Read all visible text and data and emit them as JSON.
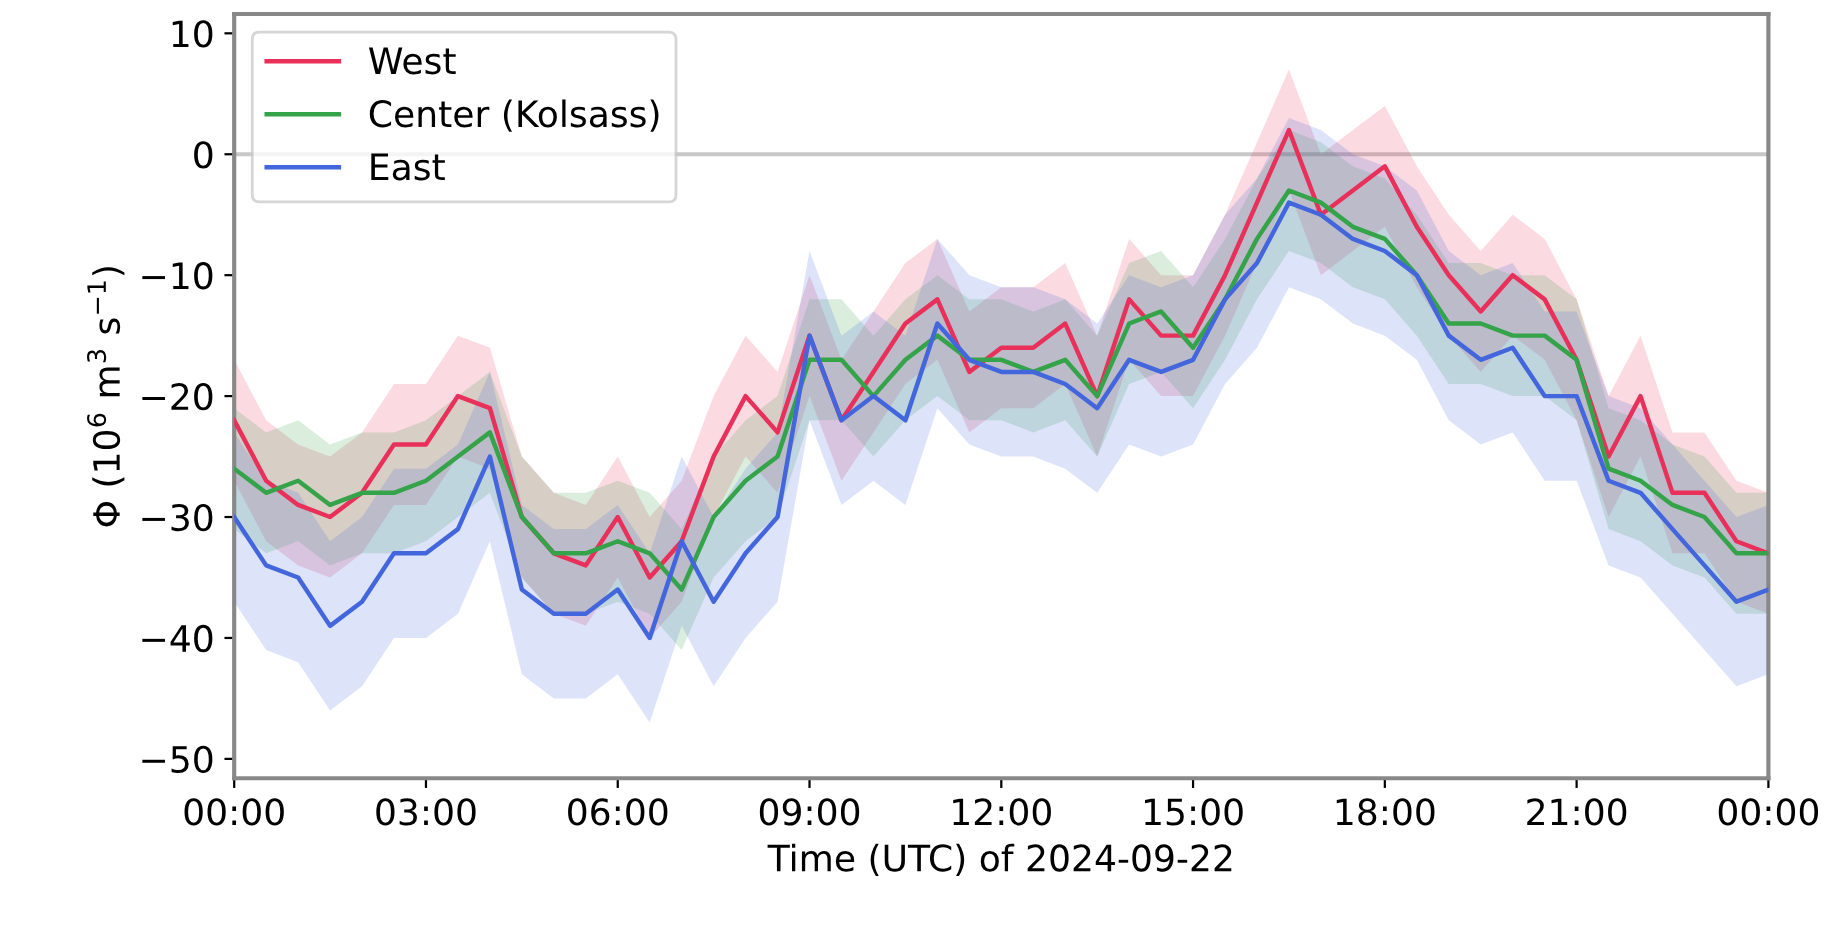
{
  "chart_data": {
    "type": "line",
    "xlabel": "Time (UTC) of 2024-09-22",
    "ylabel": "Φ (10$^{6}$ m$^{3}$ s$^{−1}$)",
    "x": [
      0,
      0.5,
      1,
      1.5,
      2,
      2.5,
      3,
      3.5,
      4,
      4.5,
      5,
      5.5,
      6,
      6.5,
      7,
      7.5,
      8,
      8.5,
      9,
      9.5,
      10,
      10.5,
      11,
      11.5,
      12,
      12.5,
      13,
      13.5,
      14,
      14.5,
      15,
      15.5,
      16,
      16.5,
      17,
      17.5,
      18,
      18.5,
      19,
      19.5,
      20,
      20.5,
      21,
      21.5,
      22,
      22.5,
      23,
      23.5,
      24
    ],
    "xlim": [
      0,
      24
    ],
    "xticks": [
      {
        "value": 0,
        "label": "00:00"
      },
      {
        "value": 3,
        "label": "03:00"
      },
      {
        "value": 6,
        "label": "06:00"
      },
      {
        "value": 9,
        "label": "09:00"
      },
      {
        "value": 12,
        "label": "12:00"
      },
      {
        "value": 15,
        "label": "15:00"
      },
      {
        "value": 18,
        "label": "18:00"
      },
      {
        "value": 21,
        "label": "21:00"
      },
      {
        "value": 24,
        "label": "00:00"
      }
    ],
    "ylim": [
      -51.6,
      11.6
    ],
    "yticks": [
      -50,
      -40,
      -30,
      -20,
      -10,
      0,
      10
    ],
    "grid": false,
    "legend": "top left",
    "line_style": "solid",
    "ref_lines": [
      {
        "axis": "y",
        "value": 0,
        "color": "#c8c8c8"
      }
    ],
    "series": [
      {
        "name": "West",
        "color": "#e8305a",
        "values": [
          -22,
          -27,
          -29,
          -30,
          -28,
          -24,
          -24,
          -20,
          -21,
          -30,
          -33,
          -34,
          -30,
          -35,
          -32,
          -25,
          -20,
          -23,
          -15,
          -22,
          -18,
          -14,
          -12,
          -18,
          -16,
          -16,
          -14,
          -20,
          -12,
          -15,
          -15,
          -10,
          -4,
          2,
          -5,
          -3,
          -1,
          -6,
          -10,
          -13,
          -10,
          -12,
          -17,
          -25,
          -20,
          -28,
          -28,
          -32,
          -33
        ],
        "upper": [
          -17,
          -22,
          -24,
          -25,
          -23,
          -19,
          -19,
          -15,
          -16,
          -25,
          -28,
          -29,
          -25,
          -30,
          -27,
          -20,
          -15,
          -18,
          -10,
          -17,
          -13,
          -9,
          -7,
          -13,
          -11,
          -11,
          -9,
          -15,
          -7,
          -10,
          -10,
          -5,
          1,
          7,
          0,
          2,
          4,
          -1,
          -5,
          -8,
          -5,
          -7,
          -12,
          -20,
          -15,
          -23,
          -23,
          -27,
          -28
        ],
        "lower": [
          -27,
          -32,
          -34,
          -35,
          -33,
          -29,
          -29,
          -25,
          -26,
          -35,
          -38,
          -39,
          -35,
          -40,
          -37,
          -30,
          -25,
          -28,
          -20,
          -27,
          -23,
          -19,
          -17,
          -23,
          -21,
          -21,
          -19,
          -25,
          -17,
          -20,
          -20,
          -15,
          -9,
          -3,
          -10,
          -8,
          -6,
          -11,
          -15,
          -18,
          -15,
          -17,
          -22,
          -30,
          -25,
          -33,
          -33,
          -37,
          -38
        ]
      },
      {
        "name": "Center (Kolsass)",
        "color": "#35a34a",
        "values": [
          -26,
          -28,
          -27,
          -29,
          -28,
          -28,
          -27,
          -25,
          -23,
          -30,
          -33,
          -33,
          -32,
          -33,
          -36,
          -30,
          -27,
          -25,
          -17,
          -17,
          -20,
          -17,
          -15,
          -17,
          -17,
          -18,
          -17,
          -20,
          -14,
          -13,
          -16,
          -12,
          -7,
          -3,
          -4,
          -6,
          -7,
          -10,
          -14,
          -14,
          -15,
          -15,
          -17,
          -26,
          -27,
          -29,
          -30,
          -33,
          -33
        ],
        "upper": [
          -21,
          -23,
          -22,
          -24,
          -23,
          -23,
          -22,
          -20,
          -18,
          -25,
          -28,
          -28,
          -27,
          -28,
          -31,
          -25,
          -22,
          -20,
          -12,
          -12,
          -15,
          -12,
          -10,
          -12,
          -12,
          -13,
          -12,
          -15,
          -9,
          -8,
          -11,
          -7,
          -2,
          2,
          1,
          -1,
          -2,
          -5,
          -9,
          -9,
          -10,
          -10,
          -12,
          -21,
          -22,
          -24,
          -25,
          -28,
          -28
        ],
        "lower": [
          -31,
          -33,
          -32,
          -34,
          -33,
          -33,
          -32,
          -30,
          -28,
          -35,
          -38,
          -38,
          -37,
          -38,
          -41,
          -35,
          -32,
          -30,
          -22,
          -22,
          -25,
          -22,
          -20,
          -22,
          -22,
          -23,
          -22,
          -25,
          -19,
          -18,
          -21,
          -17,
          -12,
          -8,
          -9,
          -11,
          -12,
          -15,
          -19,
          -19,
          -20,
          -20,
          -22,
          -31,
          -32,
          -34,
          -35,
          -38,
          -38
        ]
      },
      {
        "name": "East",
        "color": "#4466dd",
        "values": [
          -30,
          -34,
          -35,
          -39,
          -37,
          -33,
          -33,
          -31,
          -25,
          -36,
          -38,
          -38,
          -36,
          -40,
          -32,
          -37,
          -33,
          -30,
          -15,
          -22,
          -20,
          -22,
          -14,
          -17,
          -18,
          -18,
          -19,
          -21,
          -17,
          -18,
          -17,
          -12,
          -9,
          -4,
          -5,
          -7,
          -8,
          -10,
          -15,
          -17,
          -16,
          -20,
          -20,
          -27,
          -28,
          -31,
          -34,
          -37,
          -36
        ],
        "upper": [
          -23,
          -27,
          -28,
          -32,
          -30,
          -26,
          -26,
          -24,
          -18,
          -29,
          -31,
          -31,
          -29,
          -33,
          -25,
          -30,
          -26,
          -23,
          -8,
          -15,
          -13,
          -15,
          -7,
          -10,
          -11,
          -11,
          -12,
          -14,
          -10,
          -11,
          -10,
          -5,
          -2,
          3,
          2,
          0,
          -1,
          -3,
          -8,
          -10,
          -9,
          -13,
          -13,
          -20,
          -21,
          -24,
          -27,
          -30,
          -29
        ],
        "lower": [
          -37,
          -41,
          -42,
          -46,
          -44,
          -40,
          -40,
          -38,
          -32,
          -43,
          -45,
          -45,
          -43,
          -47,
          -39,
          -44,
          -40,
          -37,
          -22,
          -29,
          -27,
          -29,
          -21,
          -24,
          -25,
          -25,
          -26,
          -28,
          -24,
          -25,
          -24,
          -19,
          -16,
          -11,
          -12,
          -14,
          -15,
          -17,
          -22,
          -24,
          -23,
          -27,
          -27,
          -34,
          -35,
          -38,
          -41,
          -44,
          -43
        ]
      }
    ]
  }
}
